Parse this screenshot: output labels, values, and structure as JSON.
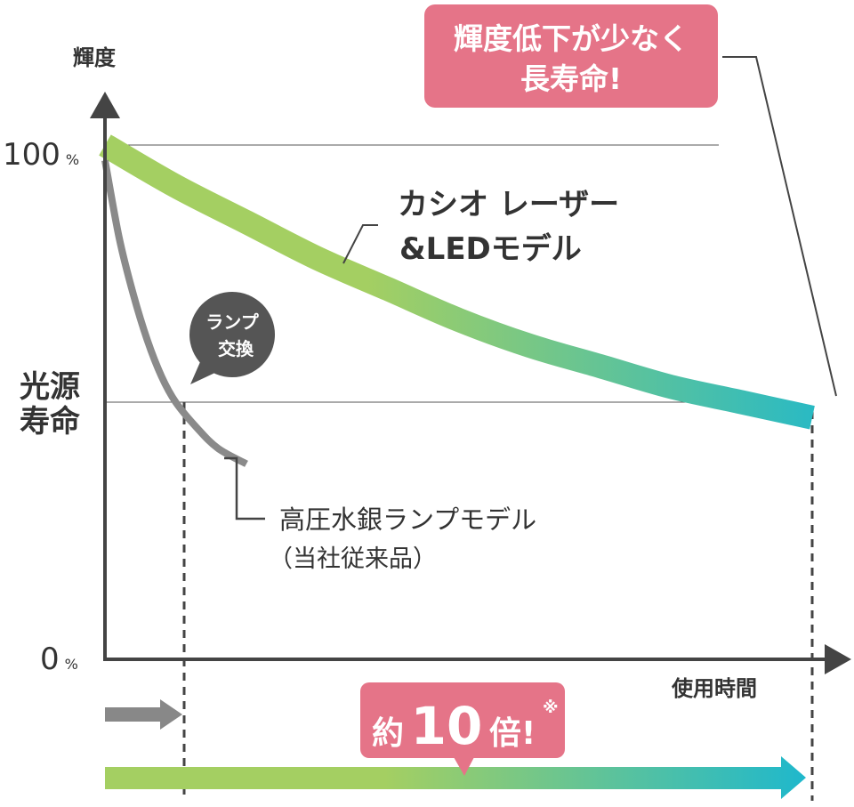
{
  "chart_data": {
    "type": "line",
    "ylabel": "輝度",
    "xlabel": "使用時間",
    "ylim": [
      0,
      100
    ],
    "y_ticks": [
      {
        "value": 100,
        "num": "100",
        "unit": "%"
      },
      {
        "value": 0,
        "num": "0",
        "unit": "%"
      }
    ],
    "light_source_life": {
      "value": 50,
      "label_line1": "光源",
      "label_line2": "寿命"
    },
    "series": [
      {
        "name_line1": "カシオ レーザー",
        "name_line2": "&LEDモデル",
        "style": "gradient-band",
        "colors": [
          "#a4cf62",
          "#1fb8cc"
        ],
        "x": [
          0,
          10,
          20,
          30,
          40,
          50,
          60,
          70,
          80,
          90,
          100
        ],
        "y": [
          100,
          92,
          85,
          78,
          72,
          66,
          61,
          57,
          53,
          50,
          47
        ]
      },
      {
        "name_line1": "高圧水銀ランプモデル",
        "name_line2": "（当社従来品）",
        "style": "gray-line",
        "colors": [
          "#8a8a8a"
        ],
        "x": [
          0,
          2,
          4,
          6,
          8,
          10,
          13,
          16,
          20
        ],
        "y": [
          97,
          82,
          71,
          62,
          55,
          50,
          45,
          41,
          38
        ]
      }
    ],
    "annotations": {
      "lamp_bubble": [
        "ランプ",
        "交換"
      ],
      "callout": [
        "輝度低下が少なく",
        "長寿命!"
      ],
      "ratio": {
        "prefix": "約",
        "number": "10",
        "suffix": "倍!",
        "mark": "※"
      }
    },
    "lifetimes_x": {
      "lamp": 10,
      "laser_led": 90
    }
  },
  "colors": {
    "axis": "#444444",
    "gray_line": "#8a8a8a",
    "callout_pink": "#e57488",
    "bubble_dark": "#555555",
    "green": "#a4cf62",
    "teal": "#1fb8cc"
  }
}
